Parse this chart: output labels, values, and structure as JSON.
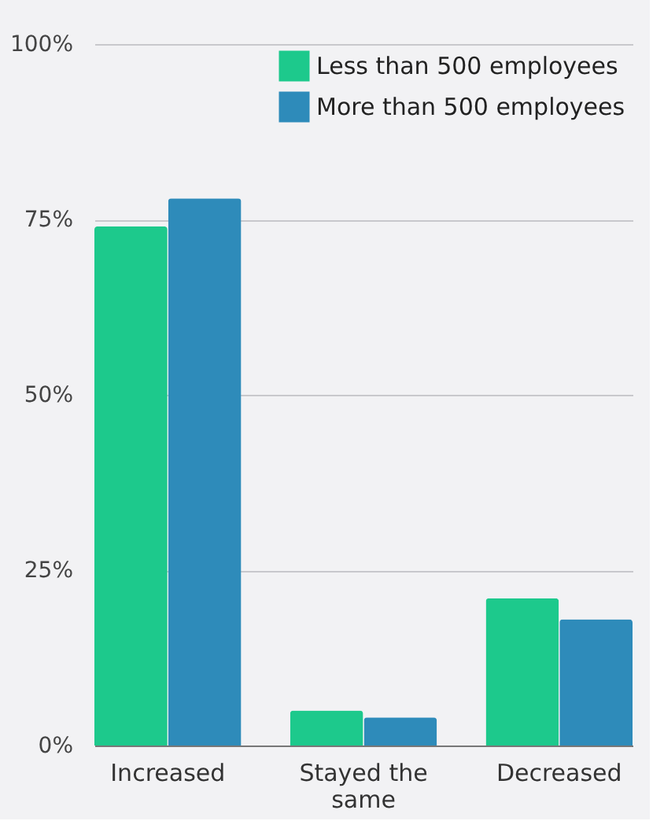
{
  "chart_data": {
    "type": "bar",
    "categories": [
      "Increased",
      "Stayed the same",
      "Decreased"
    ],
    "series": [
      {
        "name": "Less than 500 employees",
        "color": "#1dc98c",
        "values": [
          74,
          5,
          21
        ]
      },
      {
        "name": "More than 500 employees",
        "color": "#2e8bba",
        "values": [
          78,
          4,
          18
        ]
      }
    ],
    "ylim": [
      0,
      100
    ],
    "yticks": [
      {
        "value": 0,
        "label": "0%"
      },
      {
        "value": 25,
        "label": "25%"
      },
      {
        "value": 50,
        "label": "50%"
      },
      {
        "value": 75,
        "label": "75%"
      },
      {
        "value": 100,
        "label": "100%"
      }
    ],
    "grid": "y",
    "legend": "top right"
  }
}
